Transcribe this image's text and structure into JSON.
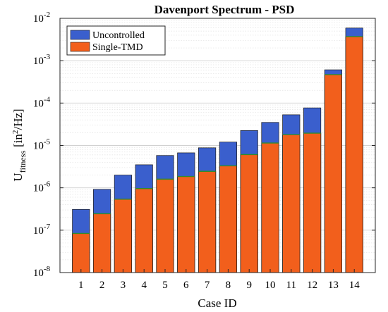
{
  "chart_data": {
    "type": "bar",
    "title": "Davenport Spectrum - PSD",
    "xlabel": "Case ID",
    "ylabel_main": "U",
    "ylabel_sub": "fitness",
    "ylabel_unit_open": "[in",
    "ylabel_unit_sup": "2",
    "ylabel_unit_close": "/Hz]",
    "y_scale": "log",
    "ylim": [
      1e-08,
      0.01
    ],
    "y_ticks": [
      {
        "value": 1e-08,
        "base": "10",
        "exp": "-8"
      },
      {
        "value": 1e-07,
        "base": "10",
        "exp": "-7"
      },
      {
        "value": 1e-06,
        "base": "10",
        "exp": "-6"
      },
      {
        "value": 1e-05,
        "base": "10",
        "exp": "-5"
      },
      {
        "value": 0.0001,
        "base": "10",
        "exp": "-4"
      },
      {
        "value": 0.001,
        "base": "10",
        "exp": "-3"
      },
      {
        "value": 0.01,
        "base": "10",
        "exp": "-2"
      }
    ],
    "grid": true,
    "legend_position": "top-left",
    "categories": [
      "1",
      "2",
      "3",
      "4",
      "5",
      "6",
      "7",
      "8",
      "9",
      "10",
      "11",
      "12",
      "13",
      "14"
    ],
    "series": [
      {
        "name": "Uncontrolled",
        "color": "#3a5fcd",
        "values": [
          3.1e-07,
          9.2e-07,
          2e-06,
          3.5e-06,
          5.8e-06,
          6.7e-06,
          8.8e-06,
          1.2e-05,
          2.25e-05,
          3.5e-05,
          5.3e-05,
          7.7e-05,
          0.00061,
          0.0059
        ]
      },
      {
        "name": "Single-TMD",
        "color": "#f25f1c",
        "values": [
          8.4e-08,
          2.45e-07,
          5.4e-07,
          9.6e-07,
          1.6e-06,
          1.85e-06,
          2.45e-06,
          3.3e-06,
          6.1e-06,
          1.14e-05,
          1.8e-05,
          1.95e-05,
          0.00047,
          0.0037
        ]
      }
    ],
    "accent_line_color": "#2e8b2e"
  }
}
